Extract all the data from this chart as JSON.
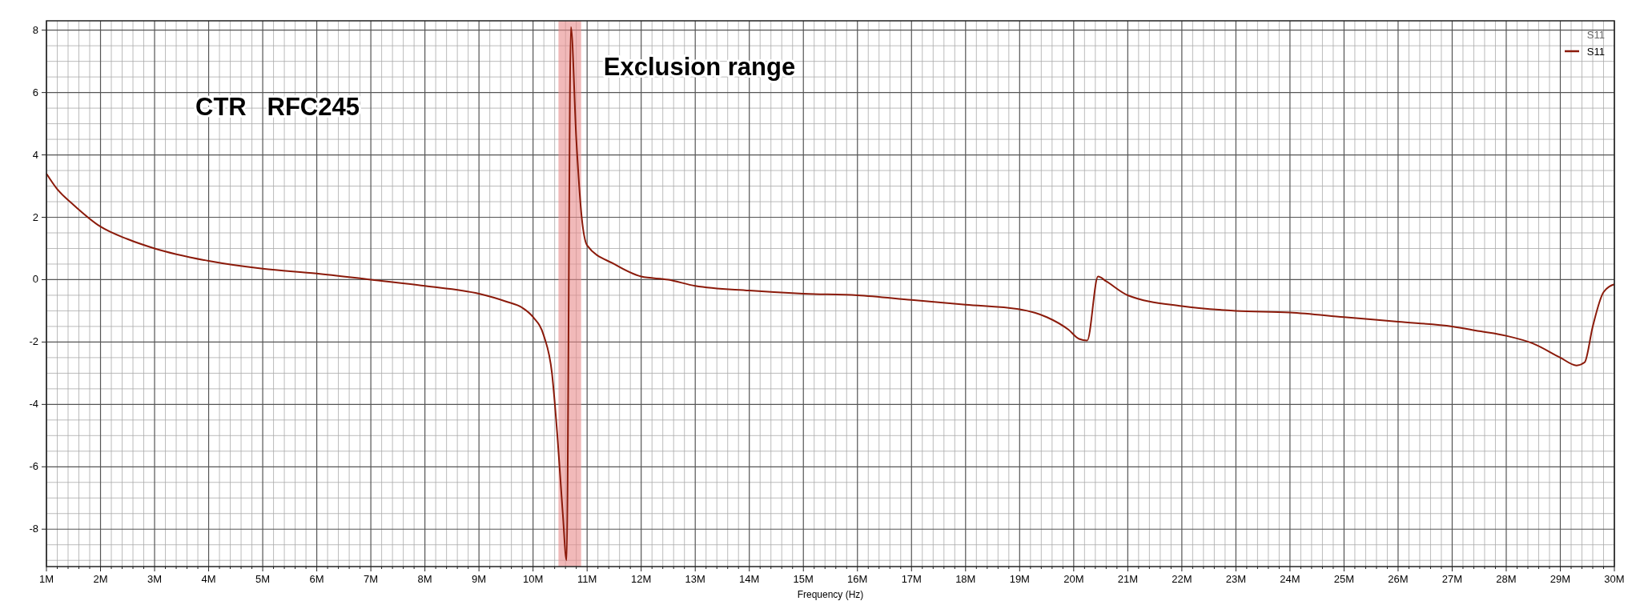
{
  "chart_data": {
    "type": "line",
    "xlabel": "Frequency (Hz)",
    "legend_title": "S11",
    "legend": "top right",
    "grid": true,
    "line_style": "solid",
    "marker": "none",
    "xlim": [
      1000000,
      30000000
    ],
    "xticks": [
      {
        "value": 1000000,
        "label": "1M"
      },
      {
        "value": 2000000,
        "label": "2M"
      },
      {
        "value": 3000000,
        "label": "3M"
      },
      {
        "value": 4000000,
        "label": "4M"
      },
      {
        "value": 5000000,
        "label": "5M"
      },
      {
        "value": 6000000,
        "label": "6M"
      },
      {
        "value": 7000000,
        "label": "7M"
      },
      {
        "value": 8000000,
        "label": "8M"
      },
      {
        "value": 9000000,
        "label": "9M"
      },
      {
        "value": 10000000,
        "label": "10M"
      },
      {
        "value": 11000000,
        "label": "11M"
      },
      {
        "value": 12000000,
        "label": "12M"
      },
      {
        "value": 13000000,
        "label": "13M"
      },
      {
        "value": 14000000,
        "label": "14M"
      },
      {
        "value": 15000000,
        "label": "15M"
      },
      {
        "value": 16000000,
        "label": "16M"
      },
      {
        "value": 17000000,
        "label": "17M"
      },
      {
        "value": 18000000,
        "label": "18M"
      },
      {
        "value": 19000000,
        "label": "19M"
      },
      {
        "value": 20000000,
        "label": "20M"
      },
      {
        "value": 21000000,
        "label": "21M"
      },
      {
        "value": 22000000,
        "label": "22M"
      },
      {
        "value": 23000000,
        "label": "23M"
      },
      {
        "value": 24000000,
        "label": "24M"
      },
      {
        "value": 25000000,
        "label": "25M"
      },
      {
        "value": 26000000,
        "label": "26M"
      },
      {
        "value": 27000000,
        "label": "27M"
      },
      {
        "value": 28000000,
        "label": "28M"
      },
      {
        "value": 29000000,
        "label": "29M"
      },
      {
        "value": 30000000,
        "label": "30M"
      }
    ],
    "ylim": [
      -9.2,
      8.3
    ],
    "yticks": [
      -8,
      -6,
      -4,
      -2,
      0,
      2,
      4,
      6,
      8
    ],
    "bands": [
      {
        "axis": "x",
        "from": 10470000,
        "to": 10890000,
        "label": "Exclusion range",
        "color": "#e88a8a"
      }
    ],
    "annotations": [
      "CTR   RFC245"
    ],
    "series": [
      {
        "name": "S11",
        "color": "#8b1a0a",
        "x": [
          1000000,
          1200000,
          1500000,
          2000000,
          2500000,
          3000000,
          4000000,
          5000000,
          6000000,
          7000000,
          8000000,
          9000000,
          9500000,
          9800000,
          10000000,
          10200000,
          10350000,
          10450000,
          10550000,
          10620000,
          10700000,
          10800000,
          10900000,
          11000000,
          11500000,
          12000000,
          12500000,
          13000000,
          14000000,
          15000000,
          16000000,
          17000000,
          18000000,
          19000000,
          19500000,
          19900000,
          20100000,
          20250000,
          20450000,
          20600000,
          21000000,
          22000000,
          23000000,
          24000000,
          25000000,
          26000000,
          27000000,
          27500000,
          28000000,
          28500000,
          29000000,
          29300000,
          29450000,
          29600000,
          29800000,
          30000000
        ],
        "values": [
          3.4,
          2.9,
          2.4,
          1.7,
          1.3,
          1.0,
          0.6,
          0.35,
          0.2,
          0.0,
          -0.2,
          -0.45,
          -0.7,
          -0.9,
          -1.2,
          -1.8,
          -3,
          -5,
          -7.5,
          -9.0,
          8.1,
          4.5,
          2.0,
          1.1,
          0.5,
          0.1,
          0.0,
          -0.2,
          -0.35,
          -0.45,
          -0.5,
          -0.65,
          -0.8,
          -0.95,
          -1.2,
          -1.6,
          -1.9,
          -1.95,
          0.1,
          -0.05,
          -0.5,
          -0.85,
          -1.0,
          -1.05,
          -1.2,
          -1.35,
          -1.5,
          -1.65,
          -1.8,
          -2.05,
          -2.5,
          -2.75,
          -2.65,
          -1.5,
          -0.4,
          -0.15
        ]
      }
    ]
  }
}
